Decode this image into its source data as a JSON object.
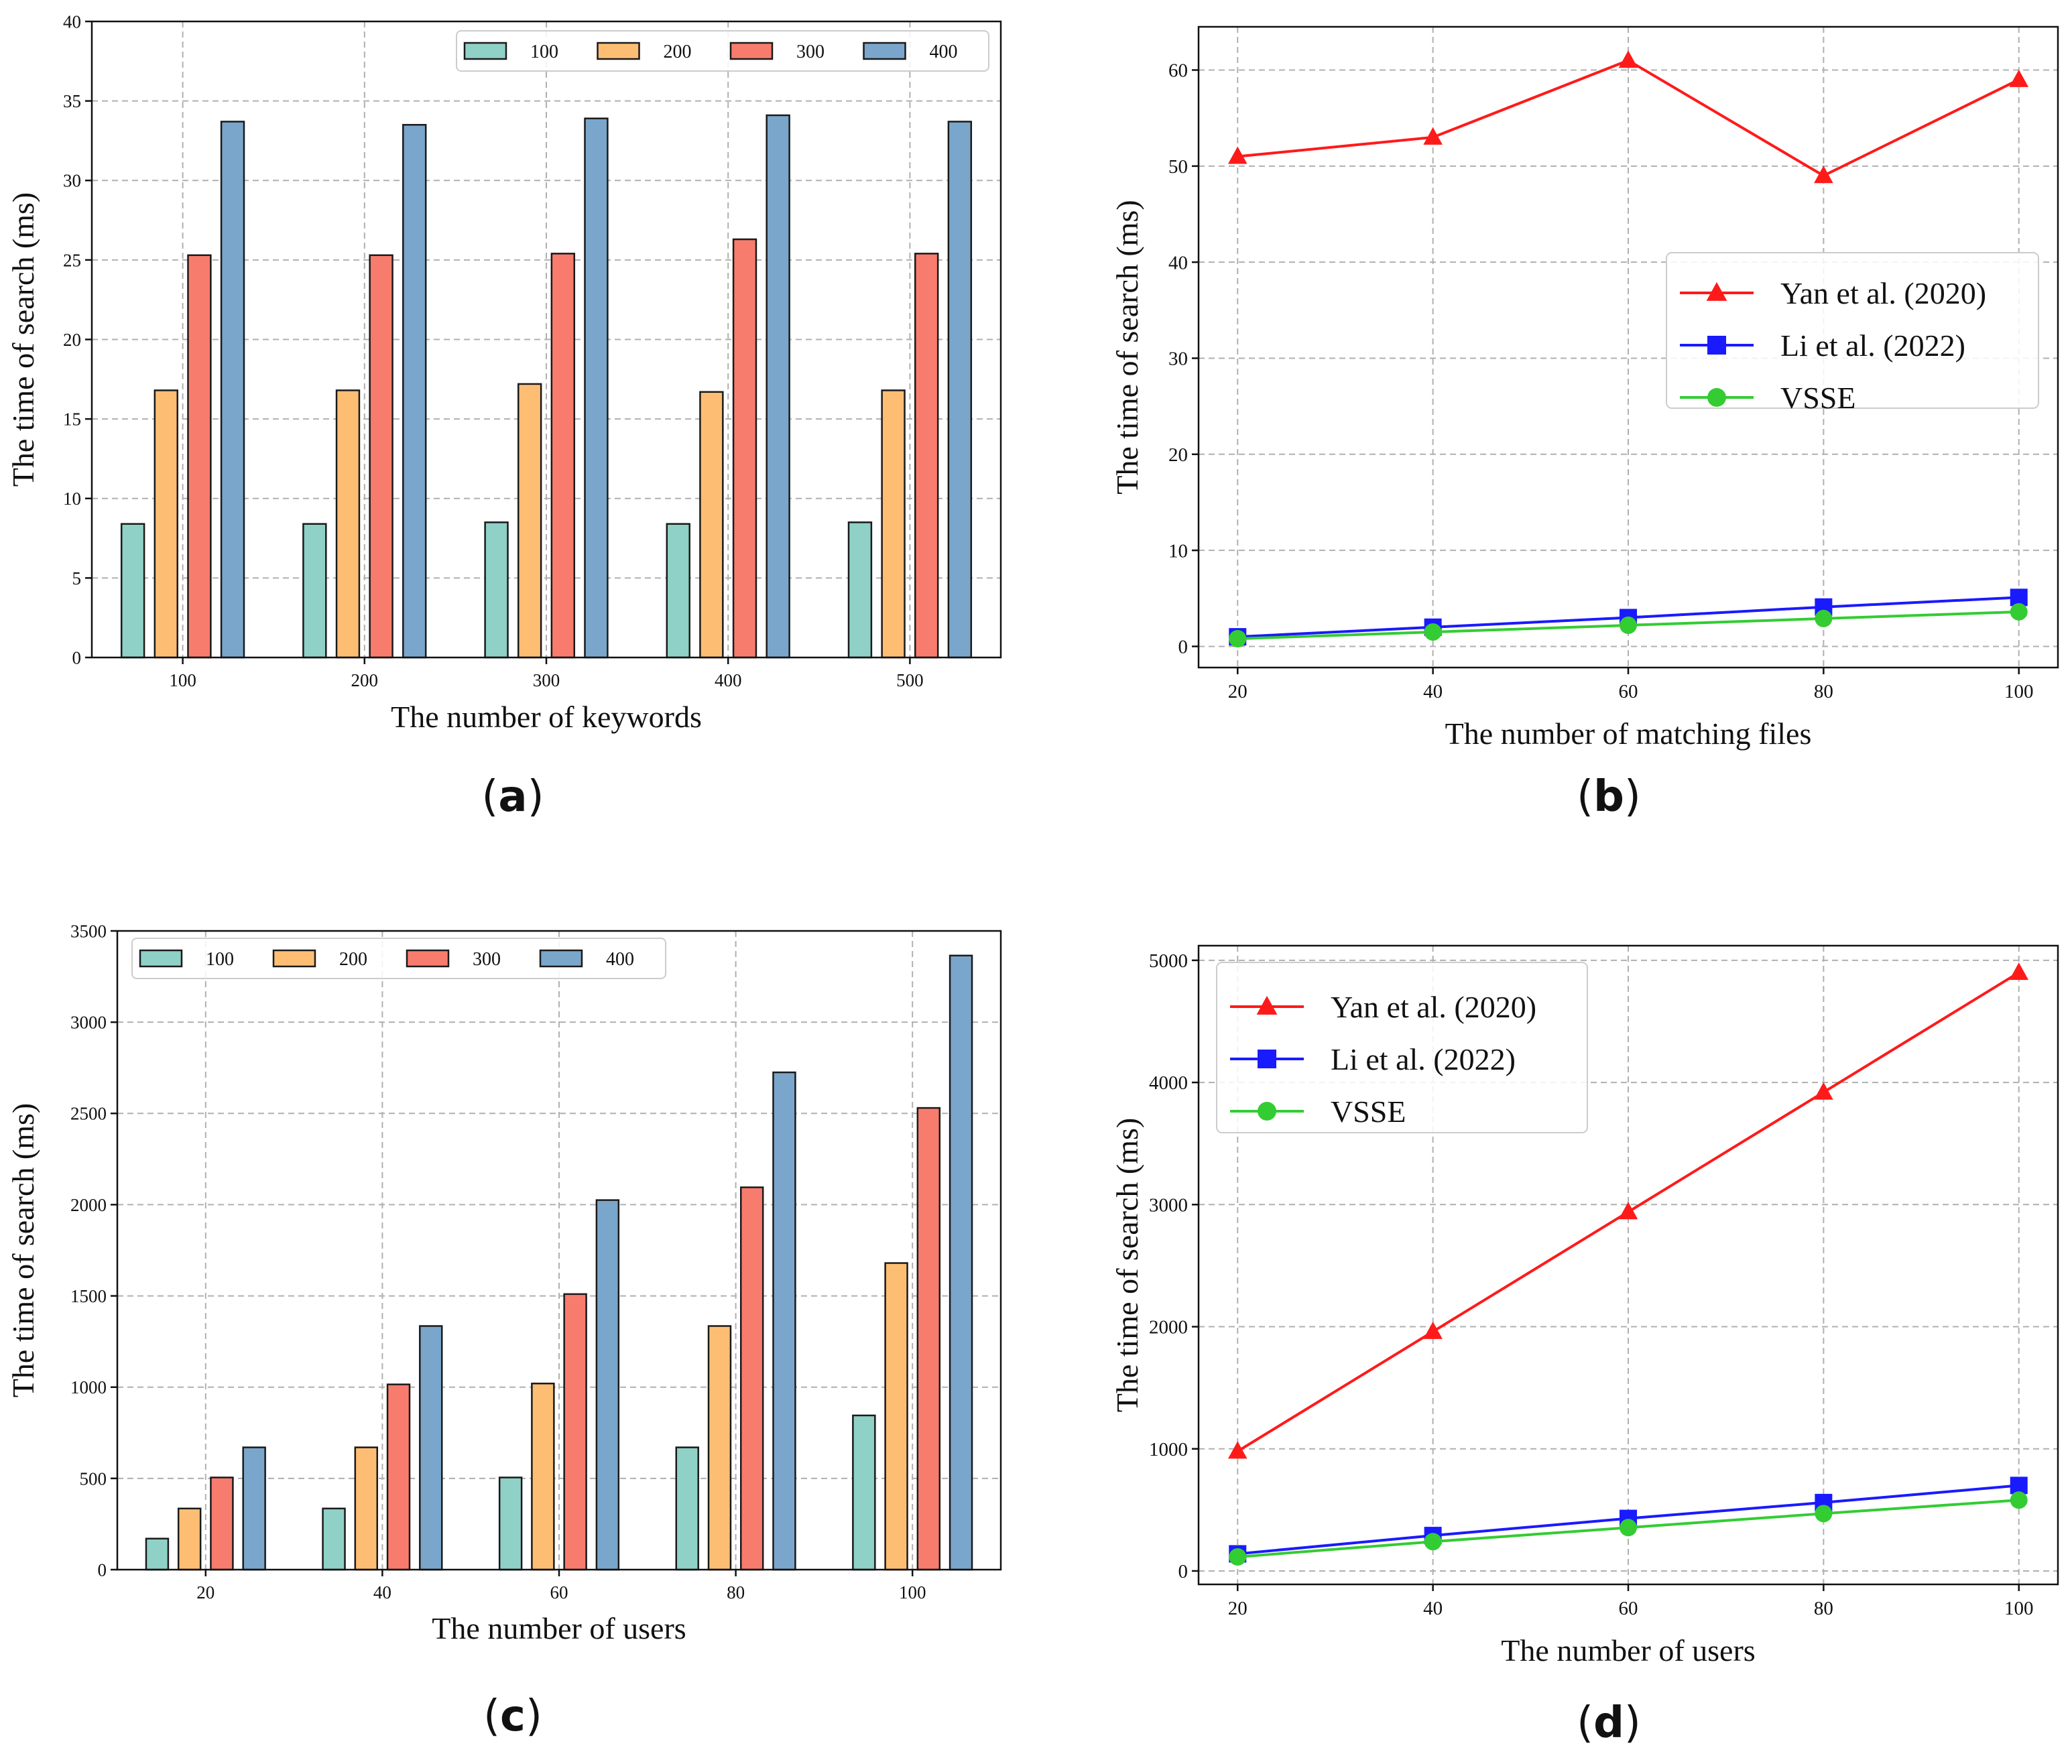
{
  "panels": [
    {
      "id": "a",
      "label": "a",
      "chart_data": {
        "type": "bar",
        "xlabel": "The number of keywords",
        "ylabel": "The time of search (ms)",
        "categories": [
          "100",
          "200",
          "300",
          "400",
          "500"
        ],
        "ylim": [
          0,
          40
        ],
        "yticks": [
          0,
          5,
          10,
          15,
          20,
          25,
          30,
          35,
          40
        ],
        "grid": true,
        "legend": "top-right",
        "legend_ncol": 4,
        "series": [
          {
            "name": "100",
            "color": "#8fd0c7",
            "values": [
              8.4,
              8.4,
              8.5,
              8.4,
              8.5
            ]
          },
          {
            "name": "200",
            "color": "#fdbe74",
            "values": [
              16.8,
              16.8,
              17.2,
              16.7,
              16.8
            ]
          },
          {
            "name": "300",
            "color": "#f87c6d",
            "values": [
              25.3,
              25.3,
              25.4,
              26.3,
              25.4
            ]
          },
          {
            "name": "400",
            "color": "#7ba6cb",
            "values": [
              33.7,
              33.5,
              33.9,
              34.1,
              33.7
            ]
          }
        ]
      }
    },
    {
      "id": "b",
      "label": "b",
      "chart_data": {
        "type": "line",
        "xlabel": "The number of matching files",
        "ylabel": "The time of search (ms)",
        "x": [
          20,
          40,
          60,
          80,
          100
        ],
        "xlim": [
          16,
          104
        ],
        "xticks": [
          20,
          40,
          60,
          80,
          100
        ],
        "ylim": [
          -2.2,
          64.5
        ],
        "yticks": [
          0,
          10,
          20,
          30,
          40,
          50,
          60
        ],
        "grid": true,
        "legend": "center-right",
        "series": [
          {
            "name": "Yan et al. (2020)",
            "color": "#ff1a1a",
            "marker": "triangle",
            "values": [
              51,
              53,
              61,
              49,
              59
            ]
          },
          {
            "name": "Li et al. (2022)",
            "color": "#1a1aff",
            "marker": "square",
            "values": [
              1.0,
              2.0,
              3.0,
              4.1,
              5.1
            ]
          },
          {
            "name": "VSSE",
            "color": "#33cc33",
            "marker": "circle",
            "values": [
              0.8,
              1.5,
              2.2,
              2.9,
              3.6
            ]
          }
        ]
      }
    },
    {
      "id": "c",
      "label": "c",
      "chart_data": {
        "type": "bar",
        "xlabel": "The number of users",
        "ylabel": "The time of search (ms)",
        "categories": [
          "20",
          "40",
          "60",
          "80",
          "100"
        ],
        "ylim": [
          0,
          3500
        ],
        "yticks": [
          0,
          500,
          1000,
          1500,
          2000,
          2500,
          3000,
          3500
        ],
        "grid": true,
        "legend": "top-left",
        "legend_ncol": 4,
        "series": [
          {
            "name": "100",
            "color": "#8fd0c7",
            "values": [
              170,
              335,
              505,
              670,
              845
            ]
          },
          {
            "name": "200",
            "color": "#fdbe74",
            "values": [
              335,
              670,
              1020,
              1335,
              1680
            ]
          },
          {
            "name": "300",
            "color": "#f87c6d",
            "values": [
              505,
              1015,
              1510,
              2095,
              2530
            ]
          },
          {
            "name": "400",
            "color": "#7ba6cb",
            "values": [
              670,
              1335,
              2025,
              2725,
              3365
            ]
          }
        ]
      }
    },
    {
      "id": "d",
      "label": "d",
      "chart_data": {
        "type": "line",
        "xlabel": "The number of users",
        "ylabel": "The time of search (ms)",
        "x": [
          20,
          40,
          60,
          80,
          100
        ],
        "xlim": [
          16,
          104
        ],
        "xticks": [
          20,
          40,
          60,
          80,
          100
        ],
        "ylim": [
          -110,
          5120
        ],
        "yticks": [
          0,
          1000,
          2000,
          3000,
          4000,
          5000
        ],
        "grid": true,
        "legend": "top-left",
        "series": [
          {
            "name": "Yan et al. (2020)",
            "color": "#ff1a1a",
            "marker": "triangle",
            "values": [
              980,
              1960,
              2940,
              3920,
              4900
            ]
          },
          {
            "name": "Li et al. (2022)",
            "color": "#1a1aff",
            "marker": "square",
            "values": [
              140,
              290,
              430,
              560,
              700
            ]
          },
          {
            "name": "VSSE",
            "color": "#33cc33",
            "marker": "circle",
            "values": [
              115,
              240,
              355,
              470,
              580
            ]
          }
        ]
      }
    }
  ]
}
